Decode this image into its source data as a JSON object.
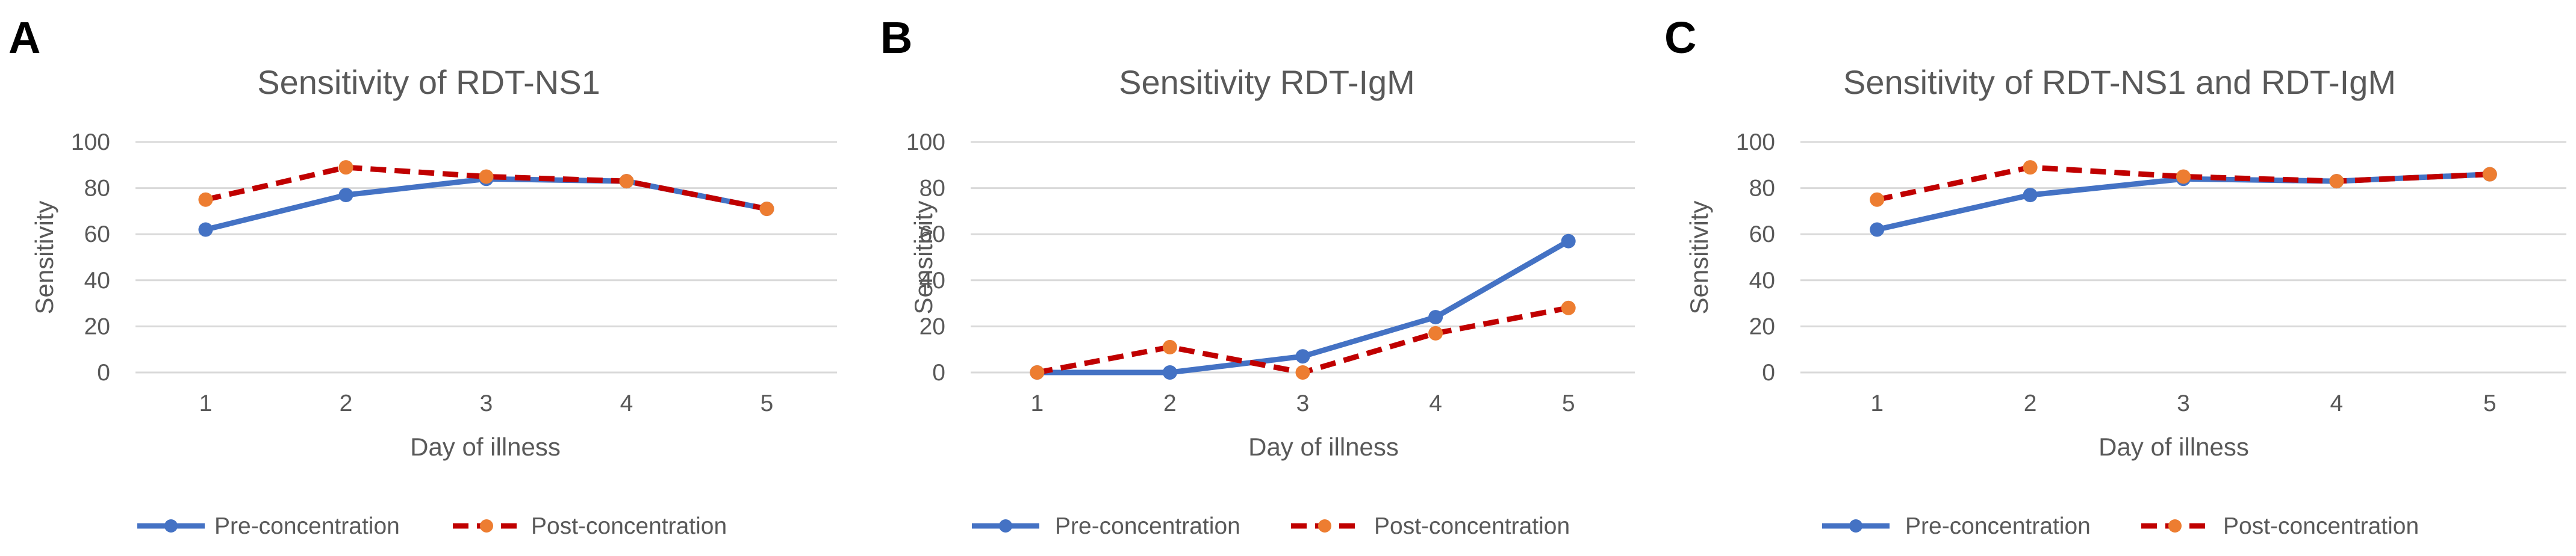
{
  "chart_data": [
    {
      "panel": "A",
      "type": "line",
      "title": "Sensitivity of RDT-NS1",
      "xlabel": "Day of illness",
      "ylabel": "Sensitivity",
      "categories": [
        "1",
        "2",
        "3",
        "4",
        "5"
      ],
      "ylim": [
        0,
        100
      ],
      "yticks": [
        "0",
        "20",
        "40",
        "60",
        "80",
        "100"
      ],
      "grid": true,
      "legend_position": "bottom",
      "series": [
        {
          "name": "Pre-concentration",
          "values": [
            62,
            77,
            84,
            83,
            71
          ],
          "color": "#4472C4",
          "style": "solid",
          "marker_color": "#4472C4"
        },
        {
          "name": "Post-concentration",
          "values": [
            75,
            89,
            85,
            83,
            71
          ],
          "color": "#C00000",
          "style": "dashed",
          "marker_color": "#ED7D31"
        }
      ]
    },
    {
      "panel": "B",
      "type": "line",
      "title": "Sensitivity RDT-IgM",
      "xlabel": "Day of illness",
      "ylabel": "Sensitivity",
      "categories": [
        "1",
        "2",
        "3",
        "4",
        "5"
      ],
      "ylim": [
        0,
        100
      ],
      "yticks": [
        "0",
        "20",
        "40",
        "60",
        "80",
        "100"
      ],
      "grid": true,
      "legend_position": "bottom",
      "series": [
        {
          "name": "Pre-concentration",
          "values": [
            0,
            0,
            7,
            24,
            57
          ],
          "color": "#4472C4",
          "style": "solid",
          "marker_color": "#4472C4"
        },
        {
          "name": "Post-concentration",
          "values": [
            0,
            11,
            0,
            17,
            28
          ],
          "color": "#C00000",
          "style": "dashed",
          "marker_color": "#ED7D31"
        }
      ]
    },
    {
      "panel": "C",
      "type": "line",
      "title": "Sensitivity of RDT-NS1 and RDT-IgM",
      "xlabel": "Day of illness",
      "ylabel": "Sensitivity",
      "categories": [
        "1",
        "2",
        "3",
        "4",
        "5"
      ],
      "ylim": [
        0,
        100
      ],
      "yticks": [
        "0",
        "20",
        "40",
        "60",
        "80",
        "100"
      ],
      "grid": true,
      "legend_position": "bottom",
      "series": [
        {
          "name": "Pre-concentration",
          "values": [
            62,
            77,
            84,
            83,
            86
          ],
          "color": "#4472C4",
          "style": "solid",
          "marker_color": "#4472C4"
        },
        {
          "name": "Post-concentration",
          "values": [
            75,
            89,
            85,
            83,
            86
          ],
          "color": "#C00000",
          "style": "dashed",
          "marker_color": "#ED7D31"
        }
      ]
    }
  ]
}
